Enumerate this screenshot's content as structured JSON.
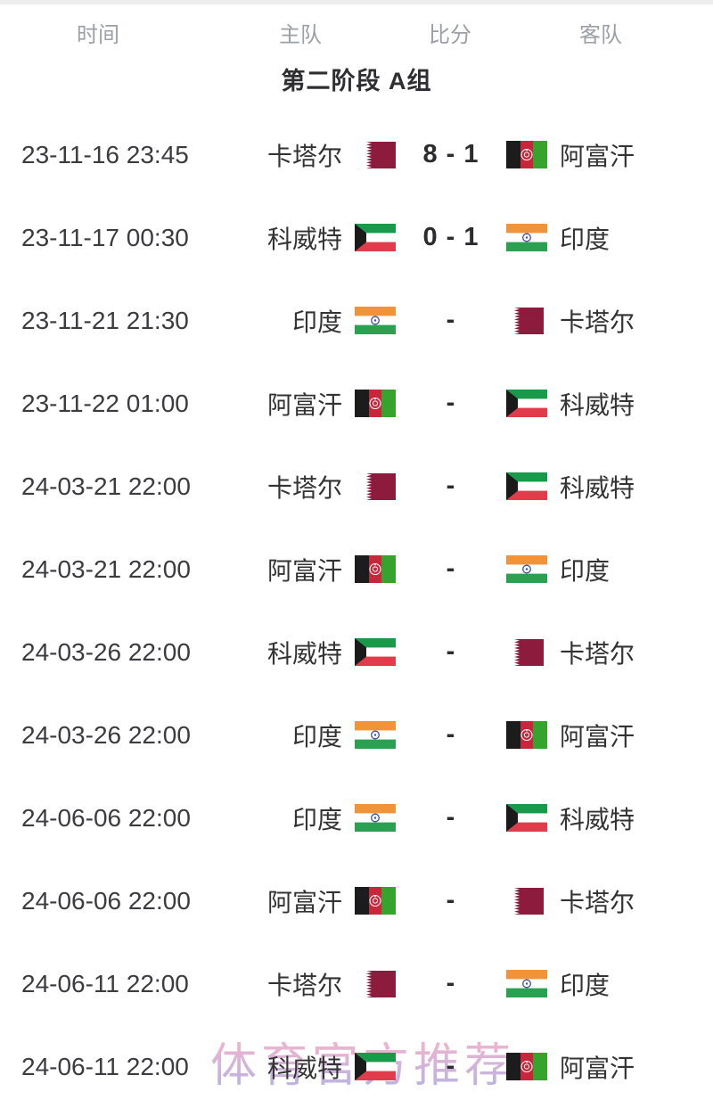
{
  "header": {
    "columns": [
      {
        "key": "time",
        "label": "时间"
      },
      {
        "key": "home",
        "label": "主队"
      },
      {
        "key": "score",
        "label": "比分"
      },
      {
        "key": "away",
        "label": "客队"
      }
    ]
  },
  "section": {
    "title": "第二阶段 A组"
  },
  "watermark": {
    "text": "体育官方推荐"
  },
  "colors": {
    "row_text": "#3c3c40",
    "header_text": "#9ba0a6",
    "score_text": "#2c2c30",
    "title_text": "#2f2f33",
    "watermark_pink": "#f2a7c3",
    "watermark_purple": "#b3a6dc"
  },
  "flags": {
    "qatar": {
      "maroon": "#8d1b3d",
      "white": "#ffffff"
    },
    "kuwait": {
      "green": "#189a4a",
      "white": "#ffffff",
      "red": "#e03c4b",
      "black": "#1a1a1a"
    },
    "india": {
      "saffron": "#f0943c",
      "white": "#ffffff",
      "green": "#2aa150",
      "navy": "#3b50a0"
    },
    "afghanistan": {
      "black": "#1c1c1c",
      "red": "#c8273b",
      "green": "#36a32c",
      "white": "#ffffff"
    }
  },
  "matches": [
    {
      "time": "23-11-16 23:45",
      "home": {
        "name": "卡塔尔",
        "flag": "qatar"
      },
      "score": "8 - 1",
      "away": {
        "name": "阿富汗",
        "flag": "afghanistan"
      }
    },
    {
      "time": "23-11-17 00:30",
      "home": {
        "name": "科威特",
        "flag": "kuwait"
      },
      "score": "0 - 1",
      "away": {
        "name": "印度",
        "flag": "india"
      }
    },
    {
      "time": "23-11-21 21:30",
      "home": {
        "name": "印度",
        "flag": "india"
      },
      "score": "-",
      "away": {
        "name": "卡塔尔",
        "flag": "qatar"
      }
    },
    {
      "time": "23-11-22 01:00",
      "home": {
        "name": "阿富汗",
        "flag": "afghanistan"
      },
      "score": "-",
      "away": {
        "name": "科威特",
        "flag": "kuwait"
      }
    },
    {
      "time": "24-03-21 22:00",
      "home": {
        "name": "卡塔尔",
        "flag": "qatar"
      },
      "score": "-",
      "away": {
        "name": "科威特",
        "flag": "kuwait"
      }
    },
    {
      "time": "24-03-21 22:00",
      "home": {
        "name": "阿富汗",
        "flag": "afghanistan"
      },
      "score": "-",
      "away": {
        "name": "印度",
        "flag": "india"
      }
    },
    {
      "time": "24-03-26 22:00",
      "home": {
        "name": "科威特",
        "flag": "kuwait"
      },
      "score": "-",
      "away": {
        "name": "卡塔尔",
        "flag": "qatar"
      }
    },
    {
      "time": "24-03-26 22:00",
      "home": {
        "name": "印度",
        "flag": "india"
      },
      "score": "-",
      "away": {
        "name": "阿富汗",
        "flag": "afghanistan"
      }
    },
    {
      "time": "24-06-06 22:00",
      "home": {
        "name": "印度",
        "flag": "india"
      },
      "score": "-",
      "away": {
        "name": "科威特",
        "flag": "kuwait"
      }
    },
    {
      "time": "24-06-06 22:00",
      "home": {
        "name": "阿富汗",
        "flag": "afghanistan"
      },
      "score": "-",
      "away": {
        "name": "卡塔尔",
        "flag": "qatar"
      }
    },
    {
      "time": "24-06-11 22:00",
      "home": {
        "name": "卡塔尔",
        "flag": "qatar"
      },
      "score": "-",
      "away": {
        "name": "印度",
        "flag": "india"
      }
    },
    {
      "time": "24-06-11 22:00",
      "home": {
        "name": "科威特",
        "flag": "kuwait"
      },
      "score": "-",
      "away": {
        "name": "阿富汗",
        "flag": "afghanistan"
      }
    }
  ]
}
